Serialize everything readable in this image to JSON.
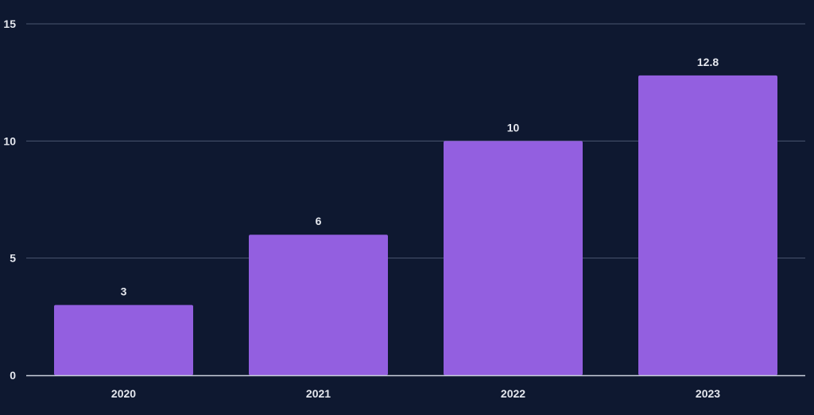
{
  "colors": {
    "background": "#0e1830",
    "bar": "#935fe0",
    "grid": "#4a5670",
    "axis": "#c9cfdc",
    "text": "#e4e7ee"
  },
  "chart_data": {
    "type": "bar",
    "categories": [
      "2020",
      "2021",
      "2022",
      "2023"
    ],
    "values": [
      3,
      6,
      10,
      12.8
    ],
    "value_labels": [
      "3",
      "6",
      "10",
      "12.8"
    ],
    "y_ticks": [
      0,
      5,
      10,
      15
    ],
    "ylim": [
      0,
      15
    ],
    "grid": true,
    "legend": "none"
  }
}
